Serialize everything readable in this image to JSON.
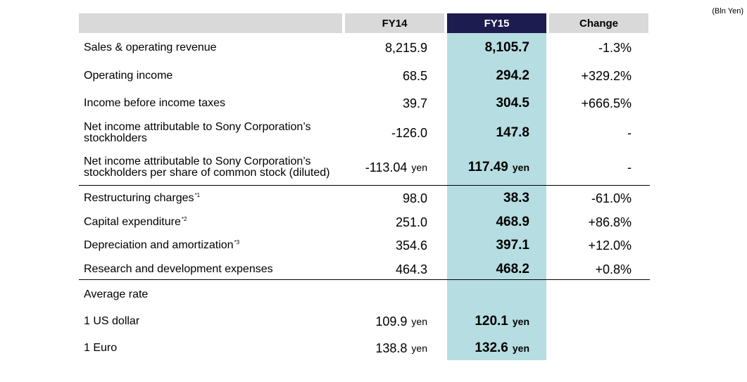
{
  "unit_note": "(Bln Yen)",
  "headers": {
    "fy14": "FY14",
    "fy15": "FY15",
    "change": "Change"
  },
  "colors": {
    "header_gray": "#d9d9d9",
    "fy15_header": "#1c1c50",
    "fy15_column": "#b6dde1"
  },
  "rows": [
    {
      "label": "Sales & operating revenue",
      "fy14": "8,215.9",
      "fy15": "8,105.7",
      "change": "-1.3%"
    },
    {
      "label": "Operating income",
      "fy14": "68.5",
      "fy15": "294.2",
      "change": "+329.2%"
    },
    {
      "label": "Income before income taxes",
      "fy14": "39.7",
      "fy15": "304.5",
      "change": "+666.5%"
    },
    {
      "label_line1": "Net income attributable to Sony Corporation’s",
      "label_line2": "stockholders",
      "fy14": "-126.0",
      "fy15": "147.8",
      "change": "-"
    },
    {
      "label_line1": "Net income attributable to Sony Corporation’s",
      "label_line2": "stockholders per share of common stock (diluted)",
      "fy14": "-113.04",
      "fy14_unit": "yen",
      "fy15": "117.49",
      "fy15_unit": "yen",
      "change": "-"
    },
    {
      "label": "Restructuring charges",
      "footnote": "*1",
      "fy14": "98.0",
      "fy15": "38.3",
      "change": "-61.0%"
    },
    {
      "label": "Capital expenditure",
      "footnote": "*2",
      "fy14": "251.0",
      "fy15": "468.9",
      "change": "+86.8%"
    },
    {
      "label": "Depreciation and amortization",
      "footnote": "*3",
      "fy14": "354.6",
      "fy15": "397.1",
      "change": "+12.0%"
    },
    {
      "label": "Research and development expenses",
      "fy14": "464.3",
      "fy15": "468.2",
      "change": "+0.8%"
    },
    {
      "label": "Average rate"
    },
    {
      "label": "1 US dollar",
      "fy14": "109.9",
      "fy14_unit": "yen",
      "fy15": "120.1",
      "fy15_unit": "yen"
    },
    {
      "label": "1 Euro",
      "fy14": "138.8",
      "fy14_unit": "yen",
      "fy15": "132.6",
      "fy15_unit": "yen"
    }
  ]
}
